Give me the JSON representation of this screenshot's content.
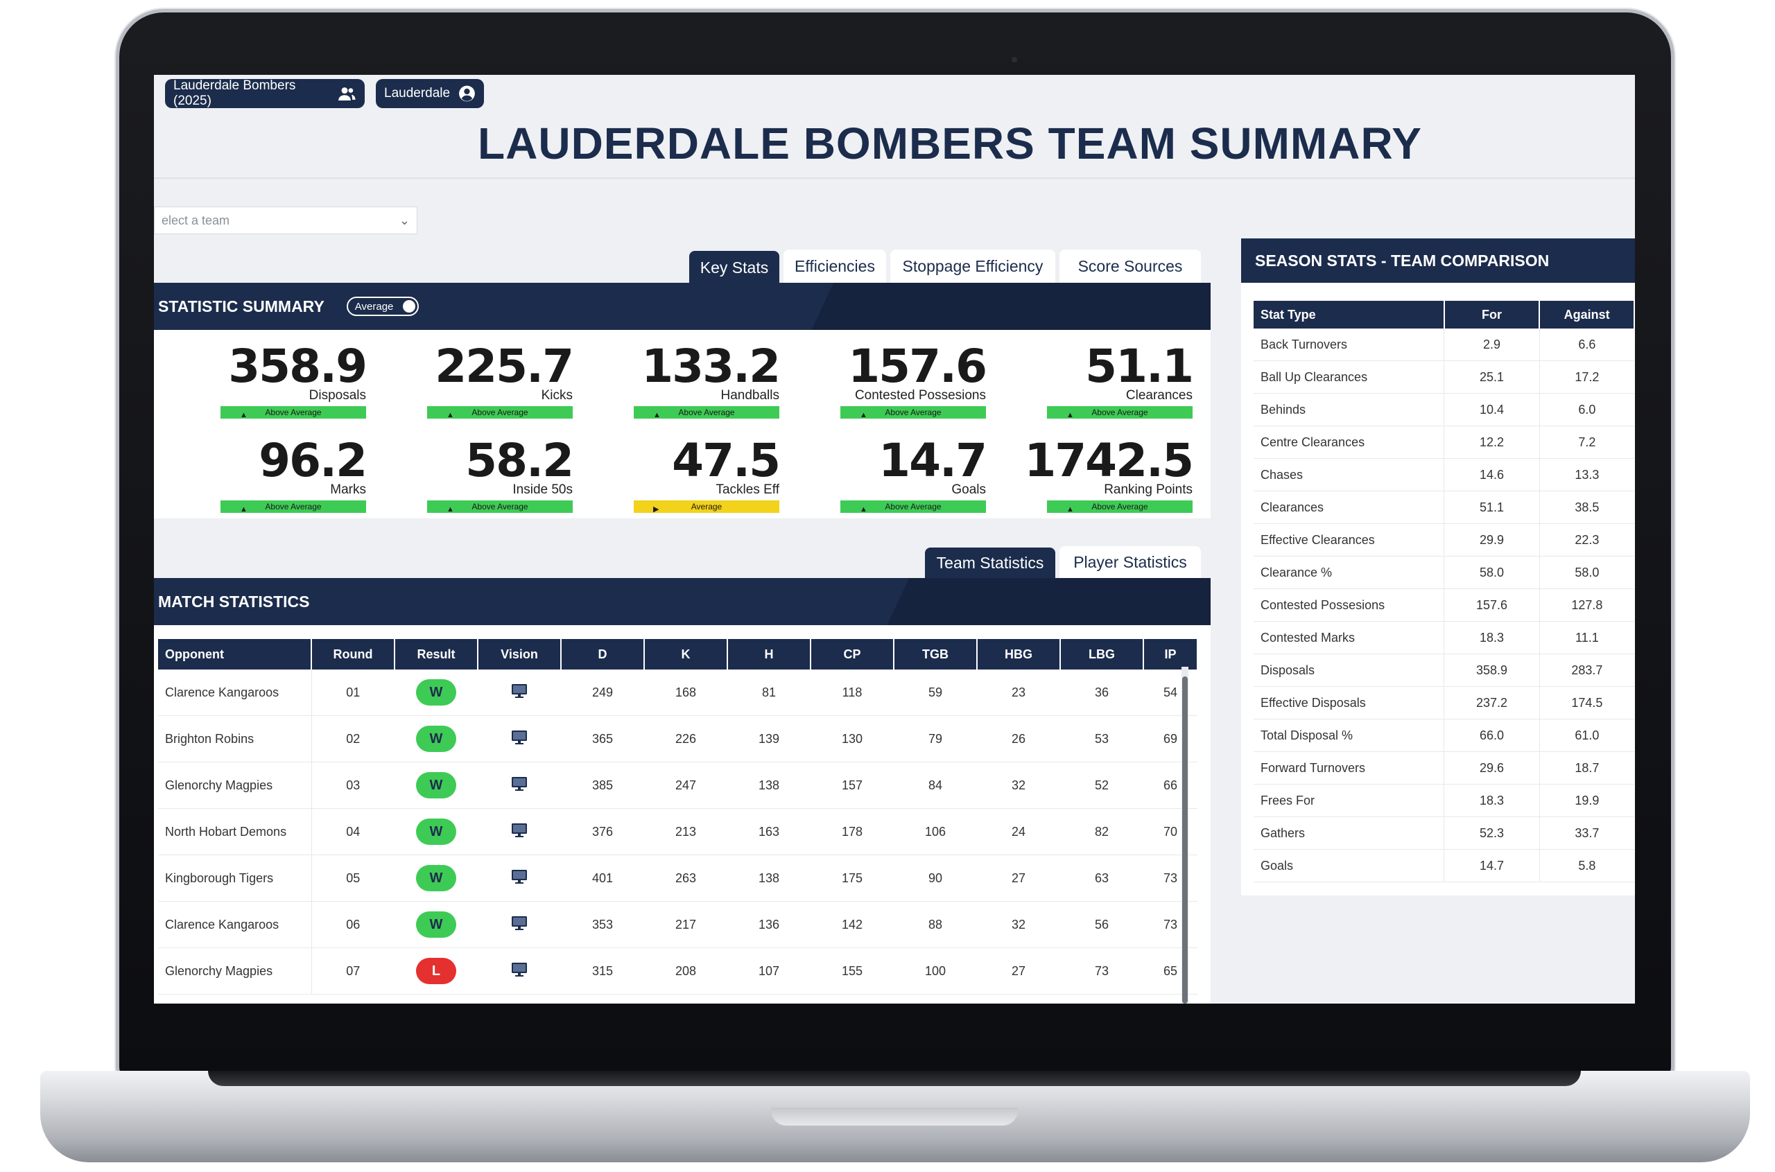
{
  "header": {
    "team_pill": "Lauderdale Bombers (2025)",
    "club_pill": "Lauderdale",
    "title": "LAUDERDALE BOMBERS TEAM SUMMARY",
    "team_select_placeholder": "elect a team"
  },
  "stat_tabs": [
    "Key Stats",
    "Efficiencies",
    "Stoppage Efficiency",
    "Score Sources"
  ],
  "summary": {
    "title": "STATISTIC SUMMARY",
    "toggle_label": "Average",
    "kpis": [
      {
        "value": "358.9",
        "label": "Disposals",
        "status": "Above Average",
        "level": "above"
      },
      {
        "value": "225.7",
        "label": "Kicks",
        "status": "Above Average",
        "level": "above"
      },
      {
        "value": "133.2",
        "label": "Handballs",
        "status": "Above Average",
        "level": "above"
      },
      {
        "value": "157.6",
        "label": "Contested Possesions",
        "status": "Above Average",
        "level": "above"
      },
      {
        "value": "51.1",
        "label": "Clearances",
        "status": "Above Average",
        "level": "above"
      },
      {
        "value": "96.2",
        "label": "Marks",
        "status": "Above Average",
        "level": "above"
      },
      {
        "value": "58.2",
        "label": "Inside 50s",
        "status": "Above Average",
        "level": "above"
      },
      {
        "value": "47.5",
        "label": "Tackles Eff",
        "status": "Average",
        "level": "average"
      },
      {
        "value": "14.7",
        "label": "Goals",
        "status": "Above Average",
        "level": "above"
      },
      {
        "value": "1742.5",
        "label": "Ranking Points",
        "status": "Above Average",
        "level": "above"
      }
    ]
  },
  "match_tabs": [
    "Team Statistics",
    "Player Statistics"
  ],
  "match": {
    "title": "MATCH STATISTICS",
    "columns": [
      "Opponent",
      "Round",
      "Result",
      "Vision",
      "D",
      "K",
      "H",
      "CP",
      "TGB",
      "HBG",
      "LBG",
      "IP"
    ],
    "rows": [
      {
        "opponent": "Clarence Kangaroos",
        "round": "01",
        "result": "W",
        "d": "249",
        "k": "168",
        "h": "81",
        "cp": "118",
        "tgb": "59",
        "hbg": "23",
        "lbg": "36",
        "ip": "54"
      },
      {
        "opponent": "Brighton Robins",
        "round": "02",
        "result": "W",
        "d": "365",
        "k": "226",
        "h": "139",
        "cp": "130",
        "tgb": "79",
        "hbg": "26",
        "lbg": "53",
        "ip": "69"
      },
      {
        "opponent": "Glenorchy Magpies",
        "round": "03",
        "result": "W",
        "d": "385",
        "k": "247",
        "h": "138",
        "cp": "157",
        "tgb": "84",
        "hbg": "32",
        "lbg": "52",
        "ip": "66"
      },
      {
        "opponent": "North Hobart Demons",
        "round": "04",
        "result": "W",
        "d": "376",
        "k": "213",
        "h": "163",
        "cp": "178",
        "tgb": "106",
        "hbg": "24",
        "lbg": "82",
        "ip": "70"
      },
      {
        "opponent": "Kingborough Tigers",
        "round": "05",
        "result": "W",
        "d": "401",
        "k": "263",
        "h": "138",
        "cp": "175",
        "tgb": "90",
        "hbg": "27",
        "lbg": "63",
        "ip": "73"
      },
      {
        "opponent": "Clarence Kangaroos",
        "round": "06",
        "result": "W",
        "d": "353",
        "k": "217",
        "h": "136",
        "cp": "142",
        "tgb": "88",
        "hbg": "32",
        "lbg": "56",
        "ip": "73"
      },
      {
        "opponent": "Glenorchy Magpies",
        "round": "07",
        "result": "L",
        "d": "315",
        "k": "208",
        "h": "107",
        "cp": "155",
        "tgb": "100",
        "hbg": "27",
        "lbg": "73",
        "ip": "65"
      }
    ]
  },
  "season": {
    "title": "SEASON STATS - TEAM COMPARISON",
    "columns": [
      "Stat Type",
      "For",
      "Against"
    ],
    "rows": [
      {
        "stat": "Back Turnovers",
        "for": "2.9",
        "against": "6.6"
      },
      {
        "stat": "Ball Up Clearances",
        "for": "25.1",
        "against": "17.2"
      },
      {
        "stat": "Behinds",
        "for": "10.4",
        "against": "6.0"
      },
      {
        "stat": "Centre Clearances",
        "for": "12.2",
        "against": "7.2"
      },
      {
        "stat": "Chases",
        "for": "14.6",
        "against": "13.3"
      },
      {
        "stat": "Clearances",
        "for": "51.1",
        "against": "38.5"
      },
      {
        "stat": "Effective Clearances",
        "for": "29.9",
        "against": "22.3"
      },
      {
        "stat": "Clearance %",
        "for": "58.0",
        "against": "58.0"
      },
      {
        "stat": "Contested Possesions",
        "for": "157.6",
        "against": "127.8"
      },
      {
        "stat": "Contested Marks",
        "for": "18.3",
        "against": "11.1"
      },
      {
        "stat": "Disposals",
        "for": "358.9",
        "against": "283.7"
      },
      {
        "stat": "Effective Disposals",
        "for": "237.2",
        "against": "174.5"
      },
      {
        "stat": "Total Disposal %",
        "for": "66.0",
        "against": "61.0"
      },
      {
        "stat": "Forward Turnovers",
        "for": "29.6",
        "against": "18.7"
      },
      {
        "stat": "Frees For",
        "for": "18.3",
        "against": "19.9"
      },
      {
        "stat": "Gathers",
        "for": "52.3",
        "against": "33.7"
      },
      {
        "stat": "Goals",
        "for": "14.7",
        "against": "5.8"
      }
    ]
  },
  "colors": {
    "navy": "#1c2c4c",
    "above": "#3ecb55",
    "average": "#f2d21b",
    "loss": "#e53030"
  },
  "icons": {
    "team": "people-icon",
    "club": "user-circle-icon",
    "vision": "monitor-icon",
    "select": "chevron-down-icon"
  }
}
